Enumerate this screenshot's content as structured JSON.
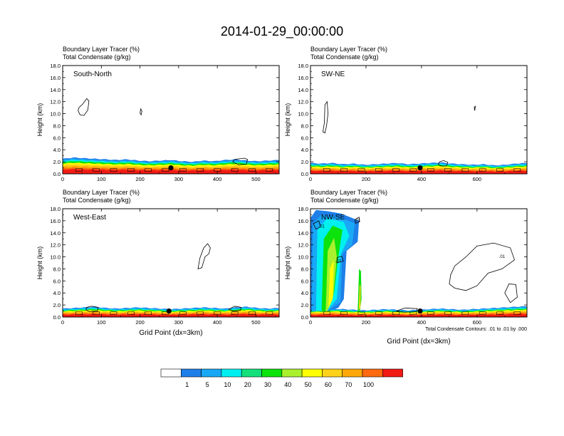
{
  "title": "2014-01-29_00:00:00",
  "common": {
    "label_line1": "Boundary Layer Tracer   (%)",
    "label_line2": "Total Condensate   (g/kg)",
    "ylabel": "Height (km)",
    "xlabel": "Grid Point (dx=3km)",
    "contour_note": "Total Condensate Contours: .01 to .01 by .000"
  },
  "colorbar": {
    "colors": [
      "#ffffff",
      "#1e7fe8",
      "#19a8f5",
      "#00f0f0",
      "#13e07a",
      "#0ce20c",
      "#a9f02e",
      "#ffff00",
      "#ffd21a",
      "#ffa80a",
      "#ff6a10",
      "#f21a14"
    ],
    "labels": [
      "1",
      "5",
      "10",
      "20",
      "30",
      "40",
      "50",
      "60",
      "70",
      "100"
    ]
  },
  "chart_data": [
    {
      "type": "heatmap",
      "panel_label": "South-North",
      "xlim": [
        0,
        560
      ],
      "ylim": [
        0,
        18
      ],
      "xticks": [
        0,
        100,
        200,
        300,
        400,
        500
      ],
      "yticks": [
        "0.0",
        "2.0",
        "4.0",
        "6.0",
        "8.0",
        "10.0",
        "12.0",
        "14.0",
        "16.0",
        "18.0"
      ],
      "show_xlabel": false,
      "marker": {
        "x": 280,
        "y": 1.0
      },
      "tracer_top": [
        2.5,
        2.7,
        2.6,
        2.5,
        2.4,
        2.3,
        2.4,
        2.2,
        2.1,
        2.2,
        2.3,
        2.1,
        2.0,
        2.2,
        2.1,
        2.3,
        2.4,
        2.2,
        2.1,
        2.2,
        2.3
      ],
      "contour_label": ".01"
    },
    {
      "type": "heatmap",
      "panel_label": "SW-NE",
      "xlim": [
        0,
        780
      ],
      "ylim": [
        0,
        18
      ],
      "xticks": [
        0,
        200,
        400,
        600
      ],
      "yticks": [
        "0.0",
        "2.0",
        "4.0",
        "6.0",
        "8.0",
        "10.0",
        "12.0",
        "14.0",
        "16.0",
        "18.0"
      ],
      "show_xlabel": false,
      "marker": {
        "x": 395,
        "y": 1.0
      },
      "tracer_top": [
        1.8,
        1.7,
        1.8,
        1.6,
        1.7,
        1.5,
        1.6,
        1.7,
        1.8,
        1.6,
        1.7,
        1.8,
        1.9,
        1.7,
        1.6,
        1.5,
        1.6,
        1.4,
        1.5,
        1.7,
        1.8
      ],
      "contour_label": ".01"
    },
    {
      "type": "heatmap",
      "panel_label": "West-East",
      "xlim": [
        0,
        560
      ],
      "ylim": [
        0,
        18
      ],
      "xticks": [
        0,
        100,
        200,
        300,
        400,
        500
      ],
      "yticks": [
        "0.0",
        "2.0",
        "4.0",
        "6.0",
        "8.0",
        "10.0",
        "12.0",
        "14.0",
        "16.0",
        "18.0"
      ],
      "show_xlabel": true,
      "marker": {
        "x": 275,
        "y": 1.0
      },
      "tracer_top": [
        1.4,
        1.5,
        1.6,
        1.7,
        1.5,
        1.4,
        1.5,
        1.6,
        1.5,
        1.4,
        1.3,
        1.4,
        1.5,
        1.6,
        1.5,
        1.4,
        1.6,
        1.7,
        1.5,
        1.4,
        1.5
      ],
      "contour_label": ".01"
    },
    {
      "type": "heatmap",
      "panel_label": "NW-SE",
      "xlim": [
        0,
        780
      ],
      "ylim": [
        0,
        18
      ],
      "xticks": [
        0,
        200,
        400,
        600
      ],
      "yticks": [
        "0.0",
        "2.0",
        "4.0",
        "6.0",
        "8.0",
        "10.0",
        "12.0",
        "14.0",
        "16.0",
        "18.0"
      ],
      "show_xlabel": true,
      "marker": {
        "x": 395,
        "y": 1.0
      },
      "tracer_top": [
        1.2,
        1.3,
        1.4,
        1.3,
        1.2,
        1.1,
        1.2,
        1.3,
        1.2,
        1.1,
        1.2,
        1.3,
        1.4,
        1.3,
        1.2,
        1.3,
        1.4,
        1.5,
        1.6,
        1.7,
        1.8
      ],
      "contour_label": ".01"
    }
  ]
}
